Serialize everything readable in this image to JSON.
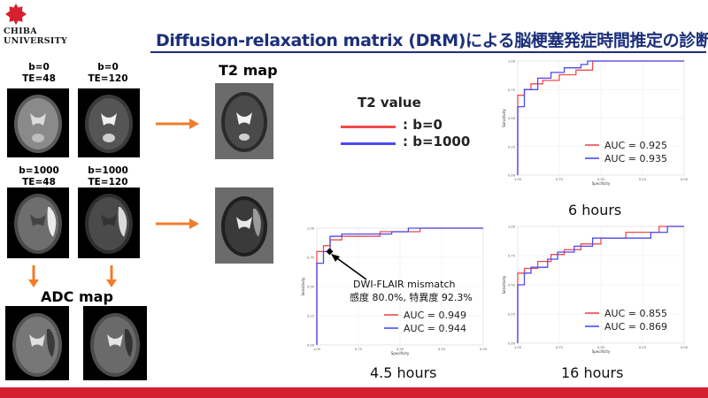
{
  "header": {
    "logo_line1": "CHIBA",
    "logo_line2": "UNIVERSITY",
    "title": "Diffusion-relaxation matrix (DRM)による脳梗塞発症時間推定の診断能",
    "brand_color": "#d6202f",
    "title_color": "#1b2f7a"
  },
  "images": {
    "b0_te48": "b=0\nTE=48",
    "b0_te120": "b=0\nTE=120",
    "b1000_te48": "b=1000\nTE=48",
    "b1000_te120": "b=1000\nTE=120",
    "adc_map_label": "ADC map",
    "t2_map_label": "T2 map"
  },
  "legend": {
    "title": "T2 value",
    "items": [
      {
        "label": ": b=0",
        "color": "#f24b4b"
      },
      {
        "label": ": b=1000",
        "color": "#4b4bf2"
      }
    ]
  },
  "annotation": {
    "line1": "DWI-FLAIR mismatch",
    "line2": "感度 80.0%, 特異度 92.3%"
  },
  "chart_data": [
    {
      "type": "line",
      "panel": "6 hours",
      "xlabel": "Specificity",
      "ylabel": "Sensitivity",
      "xlim": [
        1.0,
        0.0
      ],
      "ylim": [
        0.0,
        1.0
      ],
      "x_ticks": [
        "1.00",
        "0.75",
        "0.50",
        "0.25",
        "0.00"
      ],
      "y_ticks": [
        "0.00",
        "0.25",
        "0.50",
        "0.75",
        "1.00"
      ],
      "legend_position": "bottom-right",
      "series": [
        {
          "name": "AUC = 0.925",
          "color": "#f24b4b",
          "x": [
            1.0,
            1.0,
            0.96,
            0.96,
            0.92,
            0.92,
            0.85,
            0.85,
            0.75,
            0.75,
            0.65,
            0.65,
            0.55,
            0.55,
            0.0
          ],
          "y": [
            0.0,
            0.7,
            0.7,
            0.75,
            0.75,
            0.8,
            0.8,
            0.83,
            0.83,
            0.88,
            0.88,
            0.92,
            0.92,
            1.0,
            1.0
          ]
        },
        {
          "name": "AUC = 0.935",
          "color": "#4b4bf2",
          "x": [
            1.0,
            1.0,
            0.96,
            0.96,
            0.88,
            0.88,
            0.8,
            0.8,
            0.72,
            0.72,
            0.62,
            0.62,
            0.58,
            0.58,
            0.0
          ],
          "y": [
            0.0,
            0.6,
            0.6,
            0.75,
            0.75,
            0.85,
            0.85,
            0.9,
            0.9,
            0.94,
            0.94,
            0.97,
            0.97,
            1.0,
            1.0
          ]
        }
      ]
    },
    {
      "type": "line",
      "panel": "4.5 hours",
      "xlabel": "Specificity",
      "ylabel": "Sensitivity",
      "xlim": [
        1.0,
        0.0
      ],
      "ylim": [
        0.0,
        1.0
      ],
      "x_ticks": [
        "1.00",
        "0.75",
        "0.50",
        "0.25",
        "0.00"
      ],
      "y_ticks": [
        "0.00",
        "0.25",
        "0.50",
        "0.75",
        "1.00"
      ],
      "legend_position": "bottom-right",
      "marker": {
        "x": 0.923,
        "y": 0.8
      },
      "series": [
        {
          "name": "AUC = 0.949",
          "color": "#f24b4b",
          "x": [
            1.0,
            1.0,
            0.96,
            0.96,
            0.92,
            0.92,
            0.85,
            0.85,
            0.62,
            0.62,
            0.38,
            0.38,
            0.0
          ],
          "y": [
            0.0,
            0.8,
            0.8,
            0.85,
            0.85,
            0.9,
            0.9,
            0.93,
            0.93,
            0.97,
            0.97,
            1.0,
            1.0
          ]
        },
        {
          "name": "AUC = 0.944",
          "color": "#4b4bf2",
          "x": [
            1.0,
            1.0,
            0.96,
            0.96,
            0.92,
            0.92,
            0.85,
            0.85,
            0.55,
            0.55,
            0.45,
            0.45,
            0.0
          ],
          "y": [
            0.0,
            0.7,
            0.7,
            0.8,
            0.8,
            0.93,
            0.93,
            0.95,
            0.95,
            0.97,
            0.97,
            1.0,
            1.0
          ]
        }
      ]
    },
    {
      "type": "line",
      "panel": "16 hours",
      "xlabel": "Specificity",
      "ylabel": "Sensitivity",
      "xlim": [
        1.0,
        0.0
      ],
      "ylim": [
        0.0,
        1.0
      ],
      "x_ticks": [
        "1.00",
        "0.75",
        "0.50",
        "0.25",
        "0.00"
      ],
      "y_ticks": [
        "0.00",
        "0.25",
        "0.50",
        "0.75",
        "1.00"
      ],
      "legend_position": "bottom-right",
      "series": [
        {
          "name": "AUC = 0.855",
          "color": "#f24b4b",
          "x": [
            1.0,
            1.0,
            0.96,
            0.96,
            0.88,
            0.88,
            0.8,
            0.8,
            0.72,
            0.72,
            0.62,
            0.62,
            0.5,
            0.5,
            0.35,
            0.35,
            0.15,
            0.15,
            0.0
          ],
          "y": [
            0.0,
            0.6,
            0.6,
            0.64,
            0.64,
            0.7,
            0.7,
            0.76,
            0.76,
            0.8,
            0.8,
            0.85,
            0.85,
            0.9,
            0.9,
            0.95,
            0.95,
            1.0,
            1.0
          ]
        },
        {
          "name": "AUC = 0.869",
          "color": "#4b4bf2",
          "x": [
            1.0,
            1.0,
            0.96,
            0.96,
            0.92,
            0.92,
            0.82,
            0.82,
            0.76,
            0.76,
            0.66,
            0.66,
            0.55,
            0.55,
            0.2,
            0.2,
            0.1,
            0.1,
            0.0
          ],
          "y": [
            0.0,
            0.5,
            0.5,
            0.6,
            0.6,
            0.65,
            0.65,
            0.72,
            0.72,
            0.78,
            0.78,
            0.83,
            0.83,
            0.9,
            0.9,
            0.95,
            0.95,
            1.0,
            1.0
          ]
        }
      ]
    }
  ]
}
